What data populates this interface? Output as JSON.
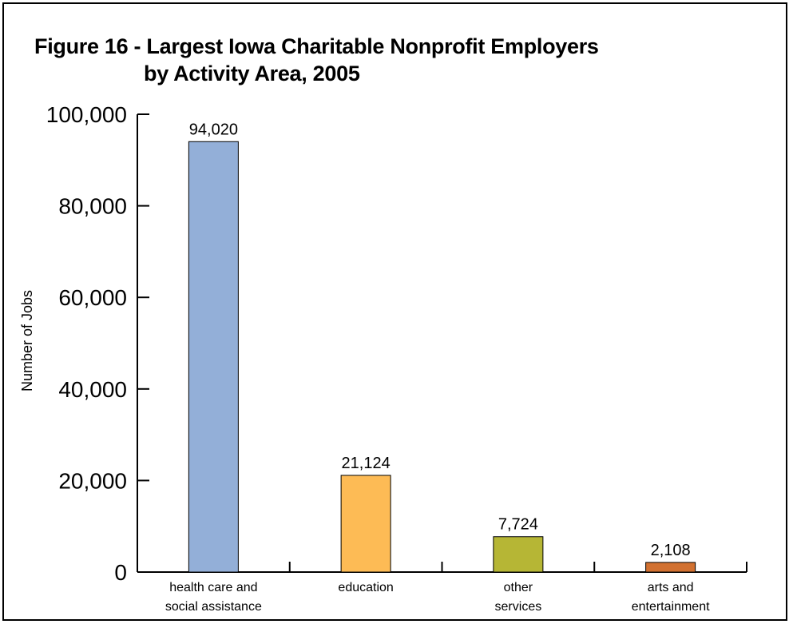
{
  "chart_data": {
    "type": "bar",
    "title_line1": "Figure 16 - Largest Iowa Charitable Nonprofit Employers",
    "title_line2": "by Activity Area, 2005",
    "ylabel": "Number of Jobs",
    "xlabel": "",
    "ylim": [
      0,
      100000
    ],
    "yticks": [
      0,
      20000,
      40000,
      60000,
      80000,
      100000
    ],
    "ytick_labels": [
      "0",
      "20,000",
      "40,000",
      "60,000",
      "80,000",
      "100,000"
    ],
    "grid": false,
    "categories": [
      [
        "health care and",
        "social assistance"
      ],
      [
        "education"
      ],
      [
        "other",
        "services"
      ],
      [
        "arts and",
        "entertainment"
      ]
    ],
    "values": [
      94020,
      21124,
      7724,
      2108
    ],
    "value_labels": [
      "94,020",
      "21,124",
      "7,724",
      "2,108"
    ],
    "colors": [
      "#93afd8",
      "#fdbb55",
      "#b6b635",
      "#d27131"
    ]
  }
}
